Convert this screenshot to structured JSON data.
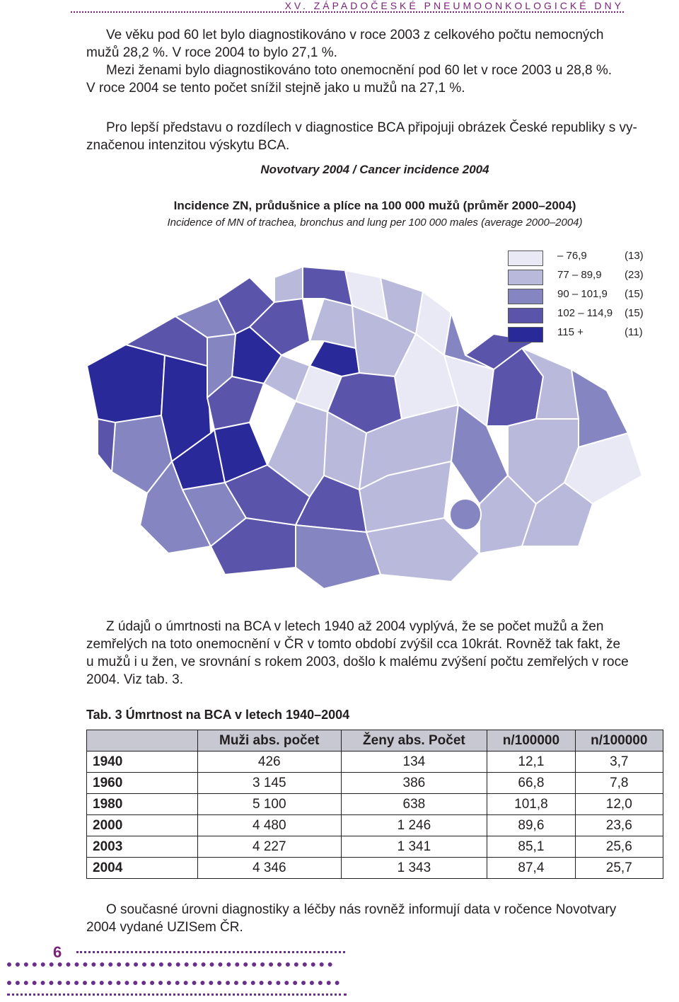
{
  "header": {
    "title": "XV. ZÁPADOČESKÉ PNEUMOONKOLOGICKÉ DNY"
  },
  "intro": {
    "p1_line1": "Ve věku pod 60 let bylo diagnostikováno v roce 2003 z celkového počtu nemocných",
    "p1_line2": "mužů 28,2 %. V roce 2004 to bylo 27,1 %.",
    "p2_line1": "Mezi ženami bylo diagnostikováno toto onemocnění pod 60 let v roce 2003 u 28,8 %.",
    "p2_line2": "V roce 2004 se tento počet snížil stejně jako u mužů na 27,1 %.",
    "p3_line1": "Pro lepší představu o rozdílech v diagnostice BCA připojuji obrázek České republiky s vy-",
    "p3_line2": "značenou intenzitou výskytu BCA."
  },
  "figure": {
    "title": "Novotvary 2004 / Cancer incidence 2004",
    "subtitle_cz": "Incidence ZN, průdušnice a plíce na 100 000 mužů (průměr 2000–2004)",
    "subtitle_en": "Incidence of MN of trachea, bronchus and lung per 100 000 males (average 2000–2004)",
    "legend": [
      {
        "range": "– 76,9",
        "count": "(13)",
        "color": "#e9e9f6"
      },
      {
        "range": "77 – 89,9",
        "count": "(23)",
        "color": "#b9b9dc"
      },
      {
        "range": "90 – 101,9",
        "count": "(15)",
        "color": "#8585c2"
      },
      {
        "range": "102 – 114,9",
        "count": "(15)",
        "color": "#5a55aa"
      },
      {
        "range": "115 +",
        "count": "(11)",
        "color": "#29299a"
      }
    ]
  },
  "body_text": {
    "line1": "Z údajů o úmrtnosti na BCA v letech 1940 až 2004 vyplývá, že se počet mužů a žen",
    "line2": "zemřelých na toto onemocnění v ČR v tomto období zvýšil cca 10krát. Rovněž tak fakt, že",
    "line3": "u mužů i u žen, ve srovnání s rokem 2003, došlo k malému zvýšení počtu zemřelých v roce",
    "line4": "2004. Viz tab. 3."
  },
  "table": {
    "caption": "Tab. 3 Úmrtnost na BCA v letech 1940–2004",
    "headers": [
      "",
      "Muži abs. počet",
      "Ženy abs. Počet",
      "n/100000",
      "n/100000"
    ],
    "rows": [
      [
        "1940",
        "426",
        "134",
        "12,1",
        "3,7"
      ],
      [
        "1960",
        "3 145",
        "386",
        "66,8",
        "7,8"
      ],
      [
        "1980",
        "5 100",
        "638",
        "101,8",
        "12,0"
      ],
      [
        "2000",
        "4 480",
        "1 246",
        "89,6",
        "23,6"
      ],
      [
        "2003",
        "4 227",
        "1 341",
        "85,1",
        "25,6"
      ],
      [
        "2004",
        "4 346",
        "1 343",
        "87,4",
        "25,7"
      ]
    ]
  },
  "closing": {
    "line1": "O současné úrovni diagnostiky a léčby nás rovněž informují data v ročence Novotvary",
    "line2": "2004 vydané UZISem ČR."
  },
  "page_number": "6"
}
